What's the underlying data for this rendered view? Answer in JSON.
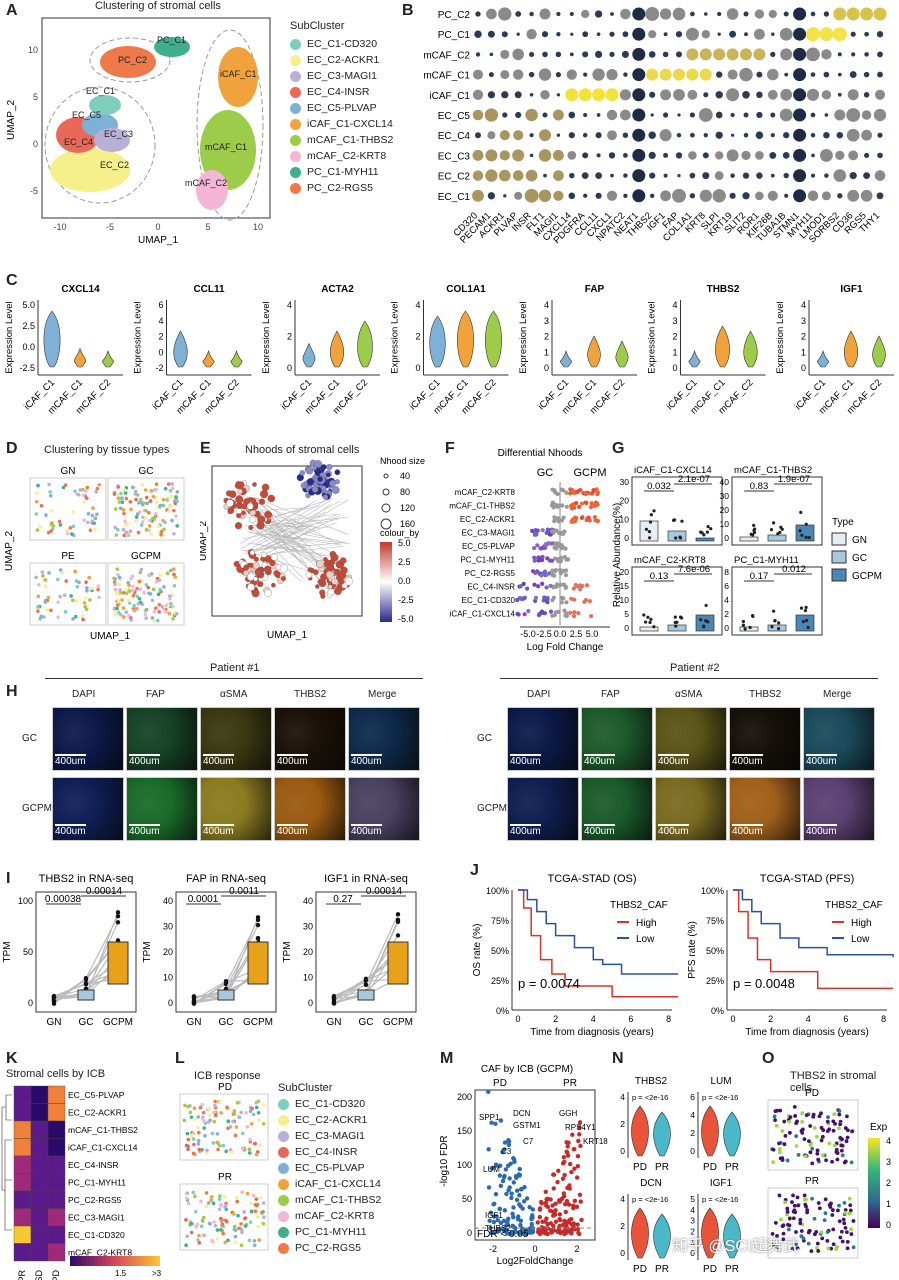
{
  "panels": {
    "A": {
      "label": "A",
      "title": "Clustering of stromal cells",
      "xlabel": "UMAP_1",
      "ylabel": "UMAP_2",
      "legend_title": "SubCluster",
      "xticks": [
        "-10",
        "-5",
        "0",
        "5",
        "10"
      ],
      "yticks": [
        "10",
        "5",
        "0",
        "-5"
      ],
      "cluster_labels": [
        "PC_C1",
        "PC_C2",
        "iCAF_C1",
        "EC_C1",
        "EC_C5",
        "EC_C3",
        "EC_C4",
        "EC_C2",
        "mCAF_C1",
        "mCAF_C2"
      ]
    },
    "B": {
      "label": "B"
    },
    "C": {
      "label": "C",
      "ylabel": "Expression Level"
    },
    "D": {
      "label": "D",
      "title": "Clustering by tissue types",
      "ylabel": "UMAP_2",
      "xlabel": "UMAP_1",
      "facets": [
        "GN",
        "GC",
        "PE",
        "GCPM"
      ]
    },
    "E": {
      "label": "E",
      "title": "Nhoods of stromal cells",
      "xlabel": "UMAP_1",
      "ylabel": "UMAP_2",
      "size_title": "Nhood size",
      "sizes": [
        "40",
        "80",
        "120",
        "160"
      ],
      "colour_title": "colour_by",
      "colour_ticks": [
        "5.0",
        "2.5",
        "0.0",
        "-2.5",
        "-5.0"
      ]
    },
    "F": {
      "label": "F",
      "title": "Differential Nhoods",
      "left": "GC",
      "right": "GCPM",
      "xlabel": "Log Fold Change",
      "xticks": [
        "-5.0",
        "-2.5",
        "0.0",
        "2.5",
        "5.0"
      ],
      "rows": [
        "mCAF_C2-KRT8",
        "mCAF_C1-THBS2",
        "EC_C2-ACKR1",
        "EC_C3-MAGI1",
        "EC_C5-PLVAP",
        "PC_C1-MYH11",
        "PC_C2-RGS5",
        "EC_C4-INSR",
        "EC_C1-CD320",
        "iCAF_C1-CXCL14"
      ]
    },
    "G": {
      "label": "G",
      "ylabel": "Relative Abundance(%)",
      "legend_title": "Type",
      "legend": [
        "GN",
        "GC",
        "GCPM"
      ],
      "subplots": [
        {
          "title": "iCAF_C1-CXCL14",
          "p1": "0.032",
          "p2": "2.1e-07",
          "yticks": [
            "30",
            "20",
            "10",
            "0"
          ]
        },
        {
          "title": "mCAF_C1-THBS2",
          "p1": "0.83",
          "p2": "1.9e-07",
          "yticks": [
            "40",
            "30",
            "20",
            "10",
            "0"
          ]
        },
        {
          "title": "mCAF_C2-KRT8",
          "p1": "0.13",
          "p2": "7.6e-06",
          "yticks": [
            "20",
            "15",
            "10",
            "5",
            "0"
          ]
        },
        {
          "title": "PC_C1-MYH11",
          "p1": "0.17",
          "p2": "0.012",
          "yticks": [
            "8",
            "6",
            "4",
            "2",
            "0"
          ]
        }
      ]
    },
    "H": {
      "label": "H",
      "patient1": "Patient #1",
      "patient2": "Patient #2",
      "channels": [
        "DAPI",
        "FAP",
        "αSMA",
        "THBS2",
        "Merge"
      ],
      "rows": [
        "GC",
        "GCPM"
      ],
      "scale": "400um"
    },
    "I": {
      "label": "I",
      "ylabel": "TPM",
      "xcats": [
        "GN",
        "GC",
        "GCPM"
      ],
      "subplots": [
        {
          "title": "THBS2 in RNA-seq",
          "p1": "0.00038",
          "p2": "0.00014",
          "yticks": [
            "100",
            "50",
            "0"
          ]
        },
        {
          "title": "FAP in RNA-seq",
          "p1": "0.0001",
          "p2": "0.0011",
          "yticks": [
            "40",
            "30",
            "20",
            "10",
            "0"
          ]
        },
        {
          "title": "IGF1 in RNA-seq",
          "p1": "0.27",
          "p2": "0.00014",
          "yticks": [
            "40",
            "30",
            "20",
            "10",
            "0"
          ]
        }
      ]
    },
    "J": {
      "label": "J",
      "xlabel": "Time from diagnosis (years)",
      "legend_title": "THBS2_CAF",
      "legend": [
        "High",
        "Low"
      ],
      "yticks": [
        "100%",
        "75%",
        "50%",
        "25%",
        "0%"
      ],
      "xticks": [
        "0",
        "2",
        "4",
        "6",
        "8"
      ],
      "subplots": [
        {
          "title": "TCGA-STAD (OS)",
          "ylabel": "OS rate (%)",
          "p": "p = 0.0074"
        },
        {
          "title": "TCGA-STAD (PFS)",
          "ylabel": "PFS rate (%)",
          "p": "p = 0.0048"
        }
      ]
    },
    "K": {
      "label": "K",
      "title": "Stromal cells by ICB",
      "rows": [
        "EC_C5-PLVAP",
        "EC_C2-ACKR1",
        "mCAF_C1-THBS2",
        "iCAF_C1-CXCL14",
        "EC_C4-INSR",
        "PC_C1-MYH11",
        "PC_C2-RGS5",
        "EC_C3-MAGI1",
        "EC_C1-CD320",
        "mCAF_C2-KRT8"
      ],
      "cols": [
        "PR",
        "SD",
        "PD"
      ],
      "scale_ticks": [
        "1.5",
        ">3"
      ]
    },
    "L": {
      "label": "L",
      "title": "ICB response",
      "facets": [
        "PD",
        "PR"
      ],
      "legend_title": "SubCluster"
    },
    "M": {
      "label": "M",
      "title": "CAF by ICB (GCPM)",
      "left": "PD",
      "right": "PR",
      "xlabel": "Log2FoldChange",
      "ylabel": "-log10 FDR",
      "yticks": [
        "200",
        "150",
        "100",
        "50",
        "0"
      ],
      "xticks": [
        "-2",
        "0",
        "2"
      ],
      "fdr": "FDR < 0.05",
      "genes": [
        "SPP1",
        "DCN",
        "GGH",
        "GSTM1",
        "RPS4Y1",
        "C7",
        "KRT18",
        "C3",
        "LUM",
        "IGF1",
        "THBS2"
      ]
    },
    "N": {
      "label": "N",
      "cats": [
        "PD",
        "PR"
      ],
      "p": "p = <2e-16",
      "subplots": [
        {
          "title": "THBS2",
          "yticks": [
            "4",
            "2",
            "0"
          ]
        },
        {
          "title": "LUM",
          "yticks": [
            "6",
            "4",
            "2",
            "0"
          ]
        },
        {
          "title": "DCN",
          "yticks": [
            "4",
            "2",
            "0"
          ]
        },
        {
          "title": "IGF1",
          "yticks": [
            "5",
            "4",
            "3",
            "2",
            "1",
            "0"
          ]
        }
      ]
    },
    "O": {
      "label": "O",
      "title": "THBS2 in stromal cells",
      "facets": [
        "PD",
        "PR"
      ],
      "colour_title": "Exp",
      "colour_ticks": [
        "4",
        "3",
        "2",
        "1",
        "0"
      ]
    },
    "watermark": "知乎 @SCI起舞武"
  },
  "subclusters": [
    {
      "name": "EC_C1-CD320",
      "color": "#7fcdbb"
    },
    {
      "name": "EC_C2-ACKR1",
      "color": "#f5f08c"
    },
    {
      "name": "EC_C3-MAGI1",
      "color": "#b9b0d8"
    },
    {
      "name": "EC_C4-INSR",
      "color": "#e8695a"
    },
    {
      "name": "EC_C5-PLVAP",
      "color": "#7fb1d6"
    },
    {
      "name": "iCAF_C1-CXCL14",
      "color": "#f0a23c"
    },
    {
      "name": "mCAF_C1-THBS2",
      "color": "#9ccc4a"
    },
    {
      "name": "mCAF_C2-KRT8",
      "color": "#f3b6d6"
    },
    {
      "name": "PC_C1-MYH11",
      "color": "#3fae8a"
    },
    {
      "name": "PC_C2-RGS5",
      "color": "#ee7a4a"
    }
  ],
  "chart_data": [
    {
      "type": "scatter",
      "panel": "B",
      "rows": [
        "PC_C2",
        "PC_C1",
        "mCAF_C2",
        "mCAF_C1",
        "iCAF_C1",
        "EC_C5",
        "EC_C4",
        "EC_C3",
        "EC_C2",
        "EC_C1"
      ],
      "genes": [
        "CD320",
        "PECAM1",
        "ACKR1",
        "PLVAP",
        "INSR",
        "FLT1",
        "MAGI1",
        "CXCL14",
        "PDGFRA",
        "CCL11",
        "CXCL1",
        "NPATC2",
        "NEAT1",
        "THBS2",
        "IGF1",
        "FAP",
        "COL1A1",
        "KRT8",
        "SLPI",
        "KRT19",
        "SLIT2",
        "ROR1",
        "KIF26B",
        "TUBA1B",
        "STMN1",
        "MYH11",
        "LMOD1",
        "SORBS2",
        "CD36",
        "RGS5",
        "THY1"
      ]
    },
    {
      "type": "bar",
      "panel": "C",
      "genes": [
        "CXCL14",
        "CCL11",
        "ACTA2",
        "COL1A1",
        "FAP",
        "THBS2",
        "IGF1"
      ],
      "categories": [
        "iCAF_C1",
        "mCAF_C1",
        "mCAF_C2"
      ],
      "yticks": [
        [
          "5.0",
          "2.5",
          "0.0",
          "-2.5"
        ],
        [
          "6",
          "4",
          "2",
          "0",
          "-2"
        ],
        [
          "4",
          "2",
          "0"
        ],
        [
          "4",
          "2",
          "0"
        ],
        [
          "4",
          "3",
          "2",
          "1",
          "0"
        ],
        [
          "4",
          "3",
          "2",
          "1",
          "0"
        ],
        [
          "4",
          "3",
          "2",
          "1",
          "0"
        ]
      ]
    },
    {
      "type": "line",
      "panel": "J-OS",
      "series": [
        {
          "name": "High",
          "values": [
            [
              0,
              1
            ],
            [
              0.3,
              0.85
            ],
            [
              0.7,
              0.62
            ],
            [
              1.2,
              0.42
            ],
            [
              1.8,
              0.3
            ],
            [
              2.5,
              0.2
            ],
            [
              3.2,
              0.2
            ],
            [
              5,
              0.11
            ],
            [
              8.5,
              0.11
            ]
          ]
        },
        {
          "name": "Low",
          "values": [
            [
              0,
              1
            ],
            [
              0.5,
              0.92
            ],
            [
              1,
              0.82
            ],
            [
              1.5,
              0.72
            ],
            [
              2,
              0.62
            ],
            [
              3,
              0.52
            ],
            [
              4,
              0.42
            ],
            [
              4.5,
              0.38
            ],
            [
              5.5,
              0.3
            ],
            [
              8.5,
              0.3
            ]
          ]
        }
      ]
    },
    {
      "type": "line",
      "panel": "J-PFS",
      "series": [
        {
          "name": "High",
          "values": [
            [
              0,
              1
            ],
            [
              0.3,
              0.82
            ],
            [
              0.8,
              0.6
            ],
            [
              1.3,
              0.42
            ],
            [
              2,
              0.32
            ],
            [
              2.8,
              0.32
            ],
            [
              4.5,
              0.18
            ],
            [
              8.5,
              0.18
            ]
          ]
        },
        {
          "name": "Low",
          "values": [
            [
              0,
              1
            ],
            [
              0.5,
              0.92
            ],
            [
              1,
              0.82
            ],
            [
              1.5,
              0.72
            ],
            [
              2.5,
              0.6
            ],
            [
              3.5,
              0.52
            ],
            [
              5,
              0.46
            ],
            [
              8.5,
              0.44
            ]
          ]
        }
      ]
    }
  ]
}
